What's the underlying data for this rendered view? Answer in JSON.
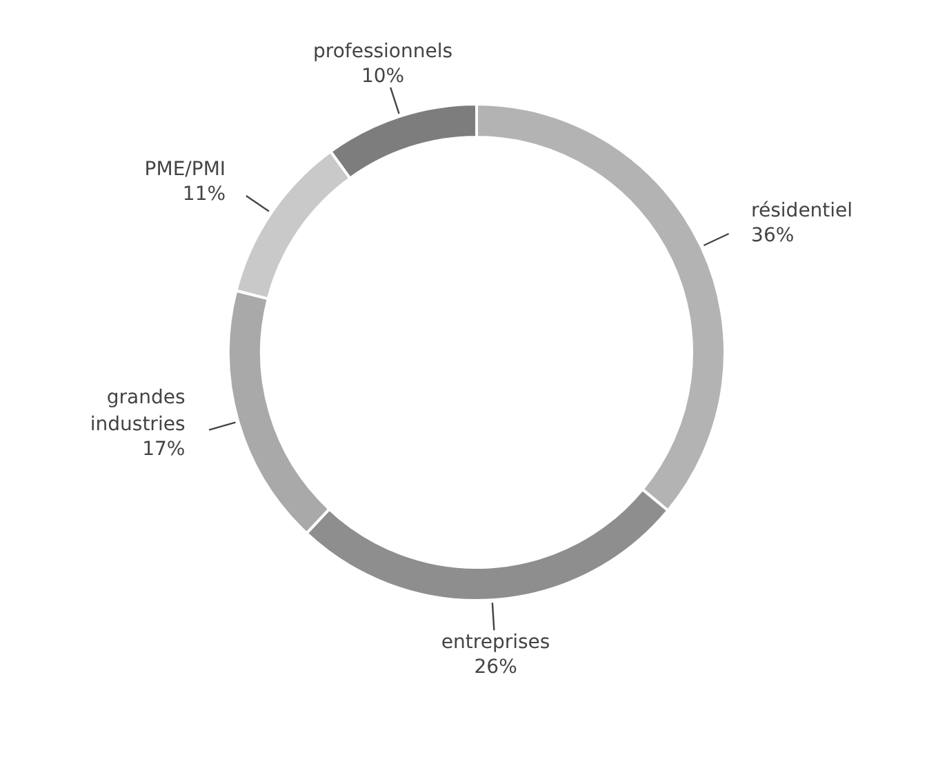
{
  "chart_data": {
    "type": "donut",
    "categories": [
      "résidentiel",
      "entreprises",
      "grandes industries",
      "PME/PMI",
      "professionnels"
    ],
    "values": [
      36,
      26,
      17,
      11,
      10
    ],
    "value_labels": [
      "36%",
      "26%",
      "17%",
      "11%",
      "10%"
    ],
    "colors": [
      "#b3b3b3",
      "#8e8e8e",
      "#a9a9a9",
      "#c9c9c9",
      "#7d7d7d"
    ]
  }
}
